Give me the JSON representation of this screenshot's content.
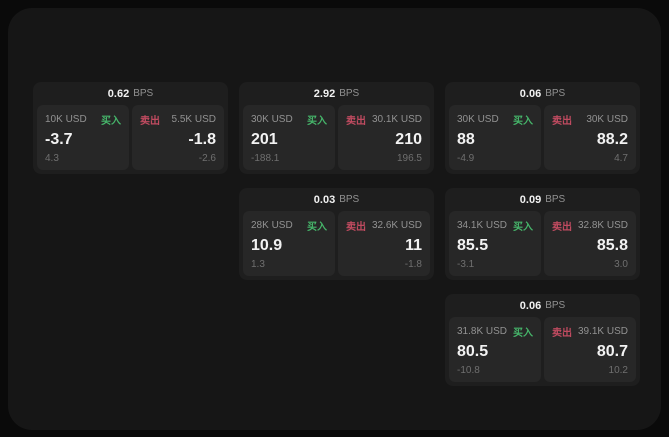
{
  "colors": {
    "page_bg": "#0a0a0a",
    "container_bg": "#161616",
    "card_bg": "#1e1e1e",
    "panel_bg": "#272727",
    "text_primary": "#f2f2f2",
    "text_muted": "#929292",
    "text_dim": "#6f6f6f",
    "buy_green": "#46b56a",
    "sell_red": "#c04b60"
  },
  "labels": {
    "bps_unit": "BPS",
    "buy": "买入",
    "sell": "卖出"
  },
  "cards": [
    {
      "row": 1,
      "col": 1,
      "bps": "0.62",
      "buy": {
        "amount": "10K USD",
        "value": "-3.7",
        "delta": "4.3"
      },
      "sell": {
        "amount": "5.5K USD",
        "value": "-1.8",
        "delta": "-2.6"
      }
    },
    {
      "row": 1,
      "col": 2,
      "bps": "2.92",
      "buy": {
        "amount": "30K USD",
        "value": "201",
        "delta": "-188.1"
      },
      "sell": {
        "amount": "30.1K USD",
        "value": "210",
        "delta": "196.5"
      }
    },
    {
      "row": 1,
      "col": 3,
      "bps": "0.06",
      "buy": {
        "amount": "30K USD",
        "value": "88",
        "delta": "-4.9"
      },
      "sell": {
        "amount": "30K USD",
        "value": "88.2",
        "delta": "4.7"
      }
    },
    {
      "row": 2,
      "col": 2,
      "bps": "0.03",
      "buy": {
        "amount": "28K USD",
        "value": "10.9",
        "delta": "1.3"
      },
      "sell": {
        "amount": "32.6K USD",
        "value": "11",
        "delta": "-1.8"
      }
    },
    {
      "row": 2,
      "col": 3,
      "bps": "0.09",
      "buy": {
        "amount": "34.1K USD",
        "value": "85.5",
        "delta": "-3.1"
      },
      "sell": {
        "amount": "32.8K USD",
        "value": "85.8",
        "delta": "3.0"
      }
    },
    {
      "row": 3,
      "col": 3,
      "bps": "0.06",
      "buy": {
        "amount": "31.8K USD",
        "value": "80.5",
        "delta": "-10.8"
      },
      "sell": {
        "amount": "39.1K USD",
        "value": "80.7",
        "delta": "10.2"
      }
    }
  ]
}
